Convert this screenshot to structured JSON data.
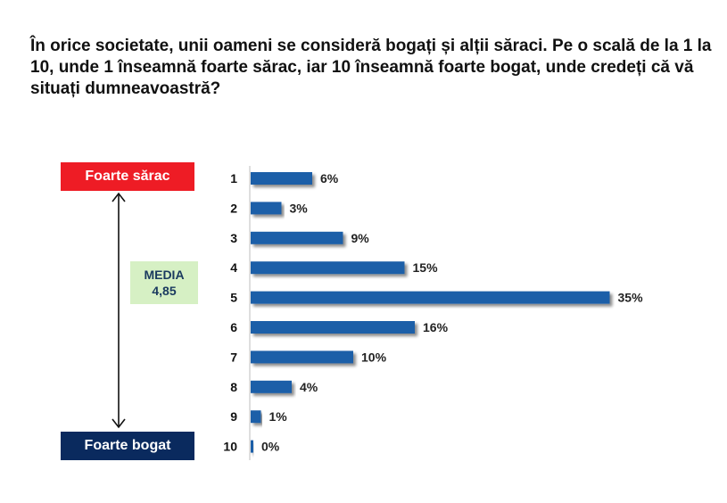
{
  "question": "În orice societate, unii oameni se consideră bogați și alții săraci. Pe o scală de la 1 la 10, unde 1 înseamnă foarte sărac, iar 10 înseamnă foarte bogat, unde credeți că vă situați dumneavoastră?",
  "scale": {
    "top_label": "Foarte sărac",
    "top_color": "#ee1c25",
    "bottom_label": "Foarte bogat",
    "bottom_color": "#0a2a5e"
  },
  "media": {
    "label": "MEDIA",
    "value": "4,85"
  },
  "chart_data": {
    "type": "bar",
    "orientation": "horizontal",
    "categories": [
      "1",
      "2",
      "3",
      "4",
      "5",
      "6",
      "7",
      "8",
      "9",
      "10"
    ],
    "values": [
      6,
      3,
      9,
      15,
      35,
      16,
      10,
      4,
      1,
      0
    ],
    "value_labels": [
      "6%",
      "3%",
      "9%",
      "15%",
      "35%",
      "16%",
      "10%",
      "4%",
      "1%",
      "0%"
    ],
    "bar_color": "#1f5fa8",
    "grid": false,
    "legend": "none"
  }
}
